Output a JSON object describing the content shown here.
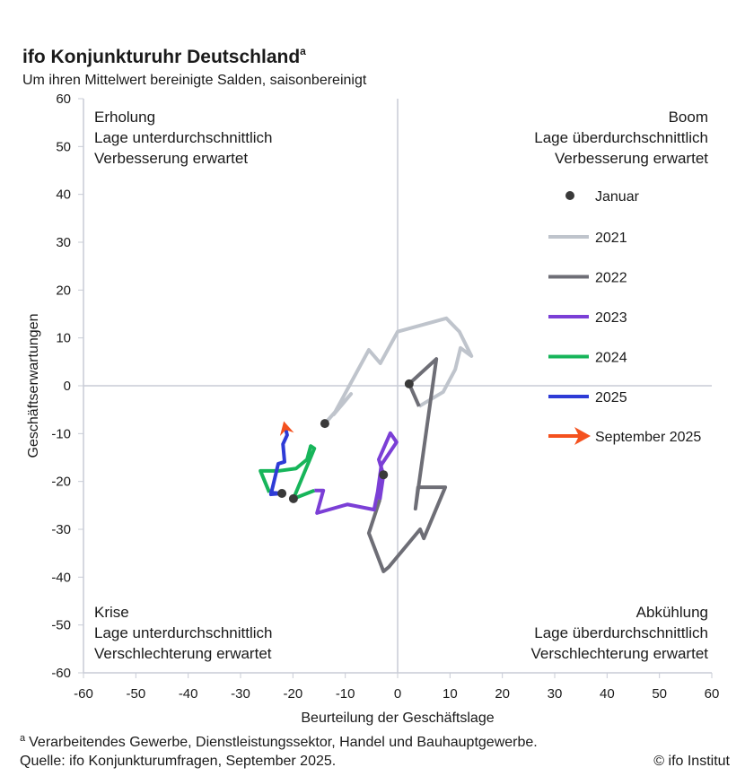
{
  "chart_data": {
    "type": "line",
    "title": "ifo Konjunkturuhr Deutschland",
    "title_superscript": "a",
    "subtitle": "Um ihren Mittelwert bereinigte Salden, saisonbereinigt",
    "xlabel": "Beurteilung der Geschäftslage",
    "ylabel": "Geschäftserwartungen",
    "xlim": [
      -60,
      60
    ],
    "ylim": [
      -60,
      60
    ],
    "xticks": [
      -60,
      -50,
      -40,
      -30,
      -20,
      -10,
      0,
      10,
      20,
      30,
      40,
      50,
      60
    ],
    "yticks": [
      -60,
      -50,
      -40,
      -30,
      -20,
      -10,
      0,
      10,
      20,
      30,
      40,
      50,
      60
    ],
    "quadrants": {
      "top_left": {
        "title": "Erholung",
        "line1": "Lage unterdurchschnittlich",
        "line2": "Verbesserung erwartet"
      },
      "top_right": {
        "title": "Boom",
        "line1": "Lage überdurchschnittlich",
        "line2": "Verbesserung erwartet"
      },
      "bottom_left": {
        "title": "Krise",
        "line1": "Lage unterdurchschnittlich",
        "line2": "Verschlechterung erwartet"
      },
      "bottom_right": {
        "title": "Abkühlung",
        "line1": "Lage überdurchschnittlich",
        "line2": "Verschlechterung erwartet"
      }
    },
    "legend": {
      "placement": "right",
      "january_label": "Januar",
      "arrow_label": "September 2025",
      "arrow_color": "#f4511e"
    },
    "series": [
      {
        "name": "2021",
        "color": "#bfc4cc",
        "points": [
          [
            -13.9,
            -7.9
          ],
          [
            -8.9,
            -1.7
          ],
          [
            -12.2,
            -6.0
          ],
          [
            -5.5,
            7.5
          ],
          [
            -3.3,
            4.7
          ],
          [
            0,
            11.3
          ],
          [
            9.3,
            14.1
          ],
          [
            11.8,
            11.3
          ],
          [
            14.1,
            6.2
          ],
          [
            12.0,
            7.9
          ],
          [
            11.0,
            3.4
          ],
          [
            8.7,
            -1.3
          ],
          [
            4.1,
            -4.3
          ]
        ]
      },
      {
        "name": "2022",
        "color": "#6e6e76",
        "points": [
          [
            2.2,
            0.4
          ],
          [
            7.4,
            5.6
          ],
          [
            3.4,
            -25.7
          ],
          [
            3.9,
            -21.2
          ],
          [
            9.1,
            -21.2
          ],
          [
            5.0,
            -31.9
          ],
          [
            4.3,
            -30.0
          ],
          [
            -1.7,
            -37.9
          ],
          [
            -2.7,
            -38.8
          ],
          [
            -5.5,
            -30.8
          ],
          [
            -3.4,
            -23.8
          ]
        ]
      },
      {
        "name": "2023",
        "color": "#7b3fd6",
        "points": [
          [
            -2.7,
            -18.6
          ],
          [
            -3.6,
            -15.4
          ],
          [
            -1.4,
            -9.9
          ],
          [
            -0.2,
            -11.8
          ],
          [
            -3.1,
            -16.5
          ],
          [
            -3.8,
            -22.1
          ],
          [
            -4.5,
            -25.9
          ],
          [
            -9.6,
            -24.8
          ],
          [
            -15.4,
            -26.6
          ],
          [
            -14.2,
            -21.9
          ],
          [
            -15.9,
            -21.9
          ]
        ]
      },
      {
        "name": "2024",
        "color": "#17b55a",
        "points": [
          [
            -19.9,
            -23.6
          ],
          [
            -15.9,
            -13.1
          ],
          [
            -16.6,
            -12.6
          ],
          [
            -17.3,
            -15.4
          ],
          [
            -19.4,
            -17.3
          ],
          [
            -22.8,
            -17.8
          ],
          [
            -26.2,
            -17.8
          ],
          [
            -24.5,
            -22.3
          ]
        ]
      },
      {
        "name": "2025",
        "color": "#2e3bd6",
        "points": [
          [
            -22.1,
            -22.5
          ],
          [
            -24.2,
            -22.7
          ],
          [
            -22.8,
            -16.3
          ],
          [
            -21.6,
            -15.9
          ],
          [
            -21.9,
            -12.2
          ],
          [
            -21.1,
            -10.3
          ],
          [
            -21.5,
            -8.5
          ]
        ]
      }
    ],
    "footnote": "Verarbeitendes Gewerbe, Dienstleistungssektor, Handel und Bauhauptgewerbe.",
    "footnote_marker": "a",
    "source": "Quelle: ifo Konjunkturumfragen, September 2025.",
    "copyright": "© ifo Institut"
  }
}
